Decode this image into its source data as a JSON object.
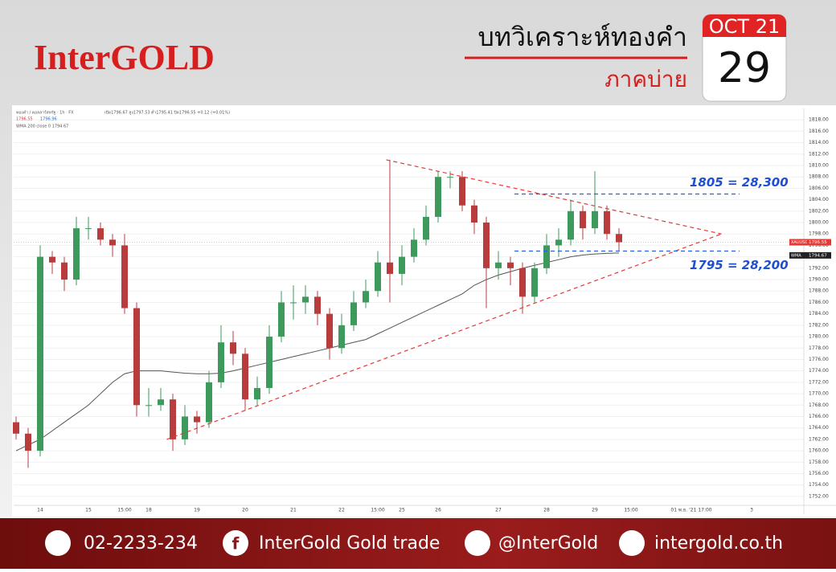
{
  "header": {
    "logo": "InterGOLD",
    "title": "บทวิเคราะห์ทองคำ",
    "subtitle": "ภาคบ่าย",
    "month": "OCT 21",
    "day": "29"
  },
  "chart_data": {
    "type": "candlestick",
    "legend_texts": [
      "ทองคำ / ดอลลาร์สหรัฐ · 1h · FX",
      "เปิด1796.67 สูง1797.53 ต่ำ1795.41 ปิด1796.55 +0.12 (+0.01%)",
      "1796.55",
      "1796.96",
      "WMA 200 close 0  1794.67"
    ],
    "categories": [
      null,
      null,
      "14",
      null,
      null,
      null,
      "15",
      null,
      null,
      "15:00",
      null,
      "18",
      null,
      null,
      null,
      "19",
      null,
      null,
      null,
      "20",
      null,
      null,
      null,
      "21",
      null,
      null,
      null,
      "22",
      null,
      null,
      "15:00",
      null,
      "25",
      null,
      null,
      "26",
      null,
      null,
      null,
      null,
      "27",
      null,
      null,
      null,
      "28",
      null,
      null,
      null,
      "29",
      null,
      null,
      "15:00",
      null,
      null,
      null,
      null,
      "01 พ.ย. '21  17:00",
      null,
      null,
      null,
      null,
      "3",
      null,
      null,
      null,
      null
    ],
    "open": [
      1765,
      1763,
      1760,
      1794,
      1793,
      1790,
      1799,
      1799,
      1797,
      1796,
      1785,
      1768,
      1768,
      1769,
      1762,
      1766,
      1765,
      1772,
      1779,
      1777,
      1769,
      1771,
      1780,
      1786,
      1786,
      1787,
      1784,
      1778,
      1782,
      1786,
      1788,
      1793,
      1791,
      1794,
      1797,
      1801,
      1808,
      1808,
      1803,
      1800,
      1792,
      1793,
      1792,
      1787,
      1792,
      1796,
      1797,
      1802,
      1799,
      1802,
      1798,
      null,
      null,
      null,
      null,
      null,
      null,
      null,
      null,
      null,
      null,
      null,
      null,
      null,
      null,
      null
    ],
    "high": [
      1766,
      1764,
      1796,
      1795,
      1794,
      1801,
      1801,
      1800,
      1798,
      1798,
      1786,
      1771,
      1771,
      1770,
      1768,
      1767,
      1774,
      1782,
      1781,
      1778,
      1773,
      1782,
      1788,
      1789,
      1789,
      1788,
      1785,
      1784,
      1788,
      1790,
      1795,
      1811,
      1796,
      1799,
      1803,
      1809,
      1809,
      1809,
      1804,
      1801,
      1795,
      1794,
      1793,
      1793,
      1798,
      1799,
      1804,
      1803,
      1809,
      1803,
      1799,
      null,
      null,
      null,
      null,
      null,
      null,
      null,
      null,
      null,
      null,
      null,
      null,
      null,
      null,
      null
    ],
    "low": [
      1762,
      1757,
      1759,
      1791,
      1788,
      1789,
      1797,
      1796,
      1794,
      1784,
      1766,
      1766,
      1767,
      1760,
      1761,
      1763,
      1764,
      1771,
      1775,
      1767,
      1768,
      1770,
      1779,
      1783,
      1784,
      1782,
      1776,
      1777,
      1781,
      1785,
      1787,
      1786,
      1789,
      1793,
      1796,
      1800,
      1806,
      1802,
      1798,
      1785,
      1790,
      1789,
      1784,
      1786,
      1791,
      1794,
      1796,
      1797,
      1798,
      1797,
      1795,
      null,
      null,
      null,
      null,
      null,
      null,
      null,
      null,
      null,
      null,
      null,
      null,
      null,
      null,
      null
    ],
    "close": [
      1763,
      1760,
      1794,
      1793,
      1790,
      1799,
      1799,
      1797,
      1796,
      1785,
      1768,
      1768,
      1769,
      1762,
      1766,
      1765,
      1772,
      1779,
      1777,
      1769,
      1771,
      1780,
      1786,
      1786,
      1787,
      1784,
      1778,
      1782,
      1786,
      1788,
      1793,
      1791,
      1794,
      1797,
      1801,
      1808,
      1808,
      1803,
      1800,
      1792,
      1793,
      1792,
      1787,
      1792,
      1796,
      1797,
      1802,
      1799,
      1802,
      1798,
      1796.55,
      null,
      null,
      null,
      null,
      null,
      null,
      null,
      null,
      null,
      null,
      null,
      null,
      null,
      null,
      null
    ],
    "up_color": "#3d9a5c",
    "down_color": "#b93c3c",
    "ma": {
      "name": "WMA",
      "color": "#555555",
      "values": [
        1760,
        1761,
        1762,
        1763.5,
        1765,
        1766.5,
        1768,
        1770,
        1772,
        1773.5,
        1774,
        1774,
        1774,
        1773.8,
        1773.6,
        1773.5,
        1773.5,
        1773.6,
        1774,
        1774.5,
        1775,
        1775.5,
        1776,
        1776.5,
        1777,
        1777.5,
        1778,
        1778.5,
        1779,
        1779.5,
        1780.5,
        1781.5,
        1782.5,
        1783.5,
        1784.5,
        1785.5,
        1786.5,
        1787.5,
        1789,
        1790,
        1790.8,
        1791.4,
        1792,
        1792.5,
        1793,
        1793.5,
        1794,
        1794.3,
        1794.5,
        1794.6,
        1794.67,
        null,
        null,
        null,
        null,
        null,
        null,
        null,
        null,
        null,
        null,
        null,
        null,
        null,
        null,
        null
      ]
    },
    "trendlines": [
      {
        "x": [
          30.7,
          58.5
        ],
        "y": [
          1811,
          1798
        ]
      },
      {
        "x": [
          12.5,
          58.5
        ],
        "y": [
          1762,
          1798
        ]
      }
    ],
    "levels": [
      {
        "value": 1805,
        "label": "1805 = 28,300"
      },
      {
        "value": 1795,
        "label": "1795 = 28,200"
      }
    ],
    "price_tags": [
      {
        "name": "XAUUSD",
        "value": 1796.55,
        "color": "#e53935"
      },
      {
        "name": "WMA",
        "value": 1794.67,
        "color": "#222222"
      }
    ],
    "ylim": [
      1751,
      1820
    ],
    "yticks": [
      {
        "value": 1752,
        "label": "1752.00"
      },
      {
        "value": 1754,
        "label": "1754.00"
      },
      {
        "value": 1756,
        "label": "1756.00"
      },
      {
        "value": 1758,
        "label": "1758.00"
      },
      {
        "value": 1760,
        "label": "1760.00"
      },
      {
        "value": 1762,
        "label": "1762.00"
      },
      {
        "value": 1764,
        "label": "1764.00"
      },
      {
        "value": 1766,
        "label": "1766.00"
      },
      {
        "value": 1768,
        "label": "1768.00"
      },
      {
        "value": 1770,
        "label": "1770.00"
      },
      {
        "value": 1772,
        "label": "1772.00"
      },
      {
        "value": 1774,
        "label": "1774.00"
      },
      {
        "value": 1776,
        "label": "1776.00"
      },
      {
        "value": 1778,
        "label": "1778.00"
      },
      {
        "value": 1780,
        "label": "1780.00"
      },
      {
        "value": 1782,
        "label": "1782.00"
      },
      {
        "value": 1784,
        "label": "1784.00"
      },
      {
        "value": 1786,
        "label": "1786.00"
      },
      {
        "value": 1788,
        "label": "1788.00"
      },
      {
        "value": 1790,
        "label": "1790.00"
      },
      {
        "value": 1792,
        "label": "1792.00"
      },
      {
        "value": 1794,
        "label": "1794.00"
      },
      {
        "value": 1796,
        "label": "1796.00"
      },
      {
        "value": 1798,
        "label": "1798.00"
      },
      {
        "value": 1800,
        "label": "1800.00"
      },
      {
        "value": 1802,
        "label": "1802.00"
      },
      {
        "value": 1804,
        "label": "1804.00"
      },
      {
        "value": 1806,
        "label": "1806.00"
      },
      {
        "value": 1808,
        "label": "1808.00"
      },
      {
        "value": 1810,
        "label": "1810.00"
      },
      {
        "value": 1812,
        "label": "1812.00"
      },
      {
        "value": 1814,
        "label": "1814.00"
      },
      {
        "value": 1816,
        "label": "1816.00"
      },
      {
        "value": 1818,
        "label": "1818.00"
      }
    ],
    "grid": true
  },
  "footer": {
    "phone": "02-2233-234",
    "facebook": "InterGold Gold trade",
    "line": "@InterGold",
    "website": "intergold.co.th"
  }
}
